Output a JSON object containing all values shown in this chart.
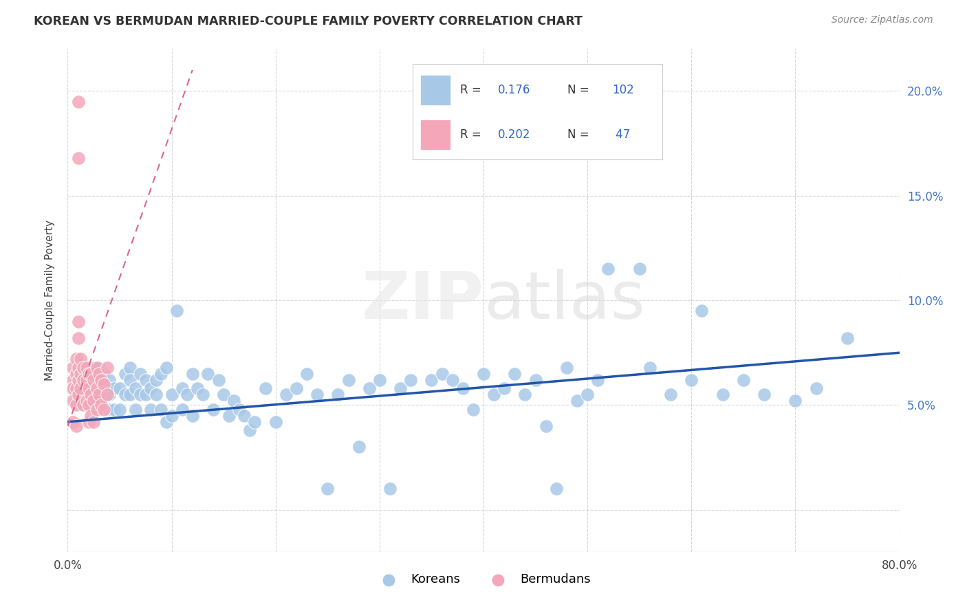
{
  "title": "KOREAN VS BERMUDAN MARRIED-COUPLE FAMILY POVERTY CORRELATION CHART",
  "source": "Source: ZipAtlas.com",
  "ylabel": "Married-Couple Family Poverty",
  "watermark": "ZIPatlas",
  "legend_korean_R": "0.176",
  "legend_korean_N": "102",
  "legend_bermudan_R": "0.202",
  "legend_bermudan_N": "47",
  "xlim": [
    0.0,
    0.8
  ],
  "ylim": [
    -0.02,
    0.22
  ],
  "korean_color": "#a8c8e8",
  "bermudan_color": "#f4a7b9",
  "trend_korean_color": "#2255aa",
  "trend_bermudan_color": "#dd6688",
  "korean_x": [
    0.005,
    0.01,
    0.015,
    0.02,
    0.02,
    0.025,
    0.025,
    0.03,
    0.03,
    0.03,
    0.035,
    0.035,
    0.04,
    0.04,
    0.04,
    0.045,
    0.045,
    0.05,
    0.05,
    0.055,
    0.055,
    0.06,
    0.06,
    0.06,
    0.065,
    0.065,
    0.07,
    0.07,
    0.075,
    0.075,
    0.08,
    0.08,
    0.085,
    0.085,
    0.09,
    0.09,
    0.095,
    0.095,
    0.1,
    0.1,
    0.105,
    0.11,
    0.11,
    0.115,
    0.12,
    0.12,
    0.125,
    0.13,
    0.135,
    0.14,
    0.145,
    0.15,
    0.155,
    0.16,
    0.165,
    0.17,
    0.175,
    0.18,
    0.19,
    0.2,
    0.21,
    0.22,
    0.23,
    0.24,
    0.25,
    0.26,
    0.27,
    0.28,
    0.29,
    0.3,
    0.31,
    0.32,
    0.33,
    0.35,
    0.36,
    0.37,
    0.38,
    0.39,
    0.4,
    0.41,
    0.42,
    0.43,
    0.44,
    0.45,
    0.46,
    0.47,
    0.48,
    0.49,
    0.5,
    0.51,
    0.52,
    0.55,
    0.56,
    0.58,
    0.6,
    0.61,
    0.63,
    0.65,
    0.67,
    0.7,
    0.72,
    0.75
  ],
  "korean_y": [
    0.058,
    0.062,
    0.065,
    0.058,
    0.05,
    0.068,
    0.055,
    0.068,
    0.06,
    0.052,
    0.065,
    0.058,
    0.062,
    0.055,
    0.048,
    0.058,
    0.048,
    0.058,
    0.048,
    0.065,
    0.055,
    0.068,
    0.062,
    0.055,
    0.058,
    0.048,
    0.065,
    0.055,
    0.062,
    0.055,
    0.058,
    0.048,
    0.062,
    0.055,
    0.065,
    0.048,
    0.068,
    0.042,
    0.055,
    0.045,
    0.095,
    0.058,
    0.048,
    0.055,
    0.065,
    0.045,
    0.058,
    0.055,
    0.065,
    0.048,
    0.062,
    0.055,
    0.045,
    0.052,
    0.048,
    0.045,
    0.038,
    0.042,
    0.058,
    0.042,
    0.055,
    0.058,
    0.065,
    0.055,
    0.01,
    0.055,
    0.062,
    0.03,
    0.058,
    0.062,
    0.01,
    0.058,
    0.062,
    0.062,
    0.065,
    0.062,
    0.058,
    0.048,
    0.065,
    0.055,
    0.058,
    0.065,
    0.055,
    0.062,
    0.04,
    0.01,
    0.068,
    0.052,
    0.055,
    0.062,
    0.115,
    0.115,
    0.068,
    0.055,
    0.062,
    0.095,
    0.055,
    0.062,
    0.055,
    0.052,
    0.058,
    0.082
  ],
  "bermudan_x": [
    0.005,
    0.005,
    0.005,
    0.005,
    0.005,
    0.008,
    0.008,
    0.008,
    0.008,
    0.008,
    0.01,
    0.01,
    0.01,
    0.01,
    0.01,
    0.01,
    0.01,
    0.012,
    0.012,
    0.012,
    0.015,
    0.015,
    0.015,
    0.018,
    0.018,
    0.018,
    0.02,
    0.02,
    0.02,
    0.02,
    0.022,
    0.022,
    0.022,
    0.025,
    0.025,
    0.025,
    0.028,
    0.028,
    0.028,
    0.03,
    0.03,
    0.032,
    0.032,
    0.035,
    0.035,
    0.038,
    0.038
  ],
  "bermudan_y": [
    0.068,
    0.062,
    0.058,
    0.052,
    0.042,
    0.072,
    0.065,
    0.058,
    0.05,
    0.04,
    0.195,
    0.168,
    0.09,
    0.082,
    0.068,
    0.062,
    0.055,
    0.072,
    0.065,
    0.058,
    0.068,
    0.062,
    0.05,
    0.068,
    0.062,
    0.052,
    0.065,
    0.058,
    0.05,
    0.042,
    0.065,
    0.055,
    0.045,
    0.062,
    0.052,
    0.042,
    0.068,
    0.058,
    0.048,
    0.065,
    0.055,
    0.062,
    0.05,
    0.06,
    0.048,
    0.068,
    0.055
  ]
}
